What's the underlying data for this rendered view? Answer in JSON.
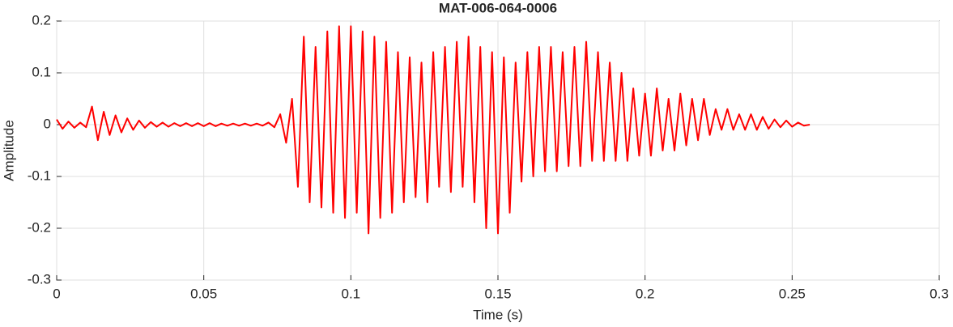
{
  "chart_data": {
    "type": "line",
    "title": "MAT-006-064-0006",
    "x_label": "Time (s)",
    "y_label": "Amplitude",
    "x": [
      0,
      0.002,
      0.004,
      0.006,
      0.008,
      0.01,
      0.012,
      0.014,
      0.016,
      0.018,
      0.02,
      0.022,
      0.024,
      0.026,
      0.028,
      0.03,
      0.032,
      0.034,
      0.036,
      0.038,
      0.04,
      0.042,
      0.044,
      0.046,
      0.048,
      0.05,
      0.052,
      0.054,
      0.056,
      0.058,
      0.06,
      0.062,
      0.064,
      0.066,
      0.068,
      0.07,
      0.072,
      0.074,
      0.076,
      0.078,
      0.08,
      0.082,
      0.084,
      0.086,
      0.088,
      0.09,
      0.092,
      0.094,
      0.096,
      0.098,
      0.1,
      0.102,
      0.104,
      0.106,
      0.108,
      0.11,
      0.112,
      0.114,
      0.116,
      0.118,
      0.12,
      0.122,
      0.124,
      0.126,
      0.128,
      0.13,
      0.132,
      0.134,
      0.136,
      0.138,
      0.14,
      0.142,
      0.144,
      0.146,
      0.148,
      0.15,
      0.152,
      0.154,
      0.156,
      0.158,
      0.16,
      0.162,
      0.164,
      0.166,
      0.168,
      0.17,
      0.172,
      0.174,
      0.176,
      0.178,
      0.18,
      0.182,
      0.184,
      0.186,
      0.188,
      0.19,
      0.192,
      0.194,
      0.196,
      0.198,
      0.2,
      0.202,
      0.204,
      0.206,
      0.208,
      0.21,
      0.212,
      0.214,
      0.216,
      0.218,
      0.22,
      0.222,
      0.224,
      0.226,
      0.228,
      0.23,
      0.232,
      0.234,
      0.236,
      0.238,
      0.24,
      0.242,
      0.244,
      0.246,
      0.248,
      0.25,
      0.252,
      0.254,
      0.256
    ],
    "values": [
      0.01,
      -0.008,
      0.006,
      -0.006,
      0.004,
      -0.005,
      0.035,
      -0.03,
      0.025,
      -0.02,
      0.018,
      -0.015,
      0.012,
      -0.01,
      0.008,
      -0.006,
      0.005,
      -0.004,
      0.004,
      -0.004,
      0.003,
      -0.003,
      0.003,
      -0.003,
      0.003,
      -0.003,
      0.003,
      -0.003,
      0.002,
      -0.002,
      0.002,
      -0.002,
      0.002,
      -0.002,
      0.002,
      -0.002,
      0.004,
      -0.005,
      0.02,
      -0.035,
      0.05,
      -0.12,
      0.17,
      -0.15,
      0.15,
      -0.16,
      0.18,
      -0.17,
      0.19,
      -0.18,
      0.19,
      -0.17,
      0.18,
      -0.21,
      0.17,
      -0.18,
      0.16,
      -0.17,
      0.14,
      -0.15,
      0.13,
      -0.14,
      0.12,
      -0.15,
      0.14,
      -0.12,
      0.15,
      -0.13,
      0.16,
      -0.12,
      0.17,
      -0.15,
      0.15,
      -0.2,
      0.14,
      -0.21,
      0.13,
      -0.17,
      0.12,
      -0.11,
      0.14,
      -0.1,
      0.15,
      -0.09,
      0.15,
      -0.09,
      0.14,
      -0.08,
      0.15,
      -0.08,
      0.16,
      -0.07,
      0.14,
      -0.07,
      0.12,
      -0.07,
      0.1,
      -0.07,
      0.07,
      -0.06,
      0.06,
      -0.06,
      0.07,
      -0.05,
      0.05,
      -0.05,
      0.06,
      -0.04,
      0.05,
      -0.03,
      0.05,
      -0.02,
      0.03,
      -0.01,
      0.03,
      -0.01,
      0.02,
      -0.01,
      0.02,
      -0.01,
      0.015,
      -0.008,
      0.01,
      -0.005,
      0.008,
      -0.004,
      0.004,
      -0.002,
      0
    ],
    "color": "#ff0000",
    "xlim": [
      0,
      0.3
    ],
    "xticks": [
      0,
      0.05,
      0.1,
      0.15,
      0.2,
      0.25,
      0.3
    ],
    "ylim": [
      -0.3,
      0.2
    ],
    "yticks": [
      -0.3,
      -0.2,
      -0.1,
      0,
      0.1,
      0.2
    ],
    "grid": true
  }
}
